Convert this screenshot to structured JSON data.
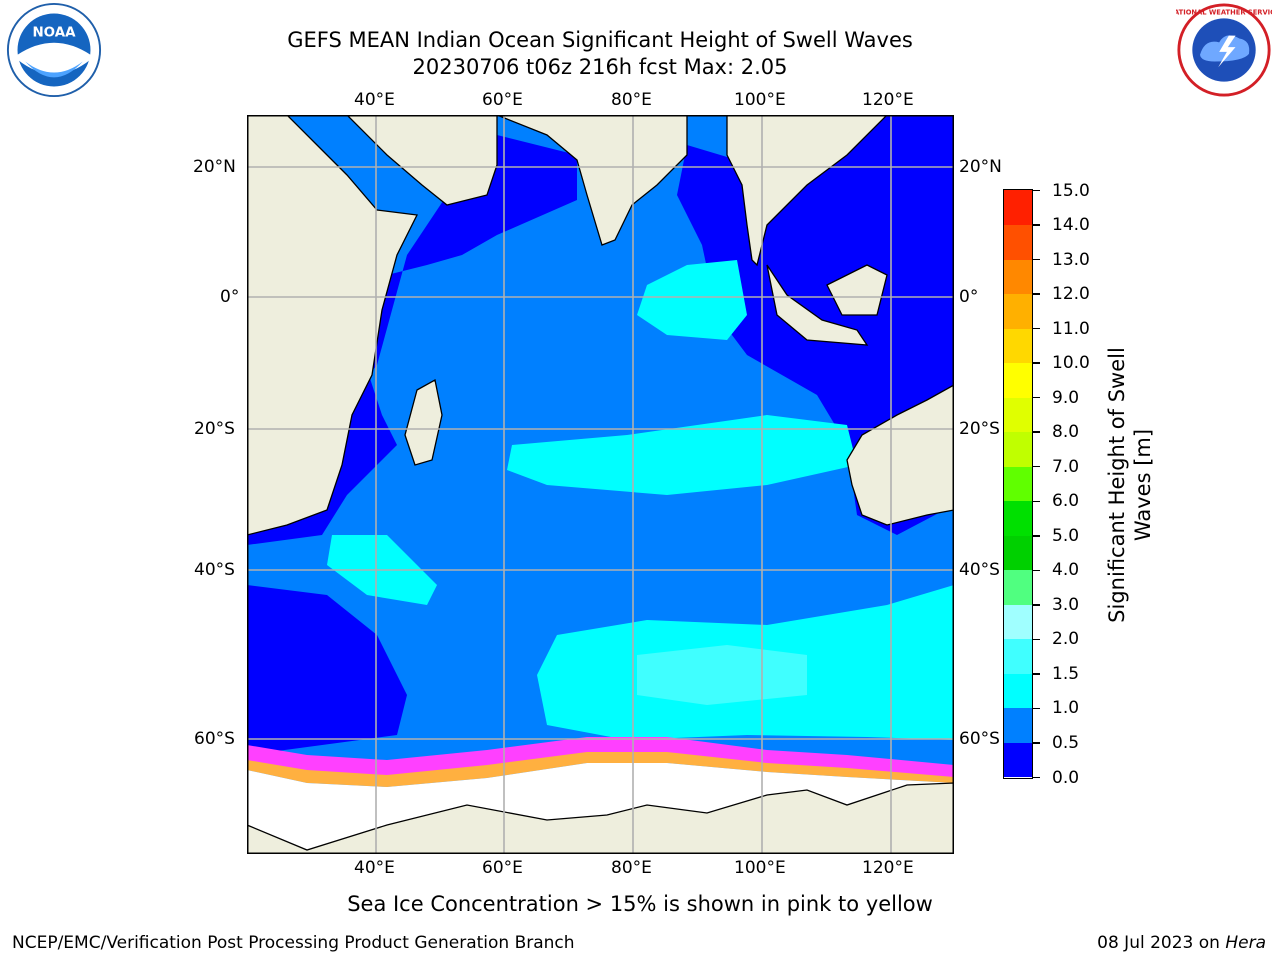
{
  "title": {
    "line1": "GEFS MEAN Indian Ocean Significant Height of Swell Waves",
    "line2": "20230706 t06z 216h fcst   Max: 2.05"
  },
  "logos": {
    "left": {
      "icon": "noaa-logo",
      "text": "NOAA"
    },
    "right": {
      "icon": "nws-logo",
      "text": "NATIONAL WEATHER SERVICE"
    }
  },
  "map": {
    "lon_labels": [
      "40°E",
      "60°E",
      "80°E",
      "100°E",
      "120°E"
    ],
    "lat_labels": [
      "20°N",
      "0°",
      "20°S",
      "40°S",
      "60°S"
    ],
    "ocean_colors": {
      "deep_blue": "#0000ff",
      "mid_blue": "#0080ff",
      "cyan": "#00ffff",
      "light_cyan": "#40ffff",
      "land": "#eeeedd",
      "ice": "#ffffff",
      "ice_pink": "#ff40ff",
      "ice_orange": "#ffb040"
    }
  },
  "colorbar": {
    "label": "Significant Height of Swell Waves [m]",
    "ticks": [
      "0.0",
      "0.5",
      "1.0",
      "1.5",
      "2.0",
      "3.0",
      "4.0",
      "5.0",
      "6.0",
      "7.0",
      "8.0",
      "9.0",
      "10.0",
      "11.0",
      "12.0",
      "13.0",
      "14.0",
      "15.0"
    ],
    "colors": [
      "#0000ff",
      "#0080ff",
      "#00ffff",
      "#40ffff",
      "#a0ffff",
      "#50ff80",
      "#00d000",
      "#00e000",
      "#60ff00",
      "#c0ff00",
      "#e0ff00",
      "#ffff00",
      "#ffd800",
      "#ffb000",
      "#ff8800",
      "#ff5000",
      "#ff2000",
      "#ff0000"
    ]
  },
  "caption": "Sea Ice Concentration > 15% is shown in pink to yellow",
  "footer": {
    "left": "NCEP/EMC/Verification Post Processing Product Generation Branch",
    "right_prefix": "08 Jul 2023 on ",
    "right_italic": "Hera"
  }
}
